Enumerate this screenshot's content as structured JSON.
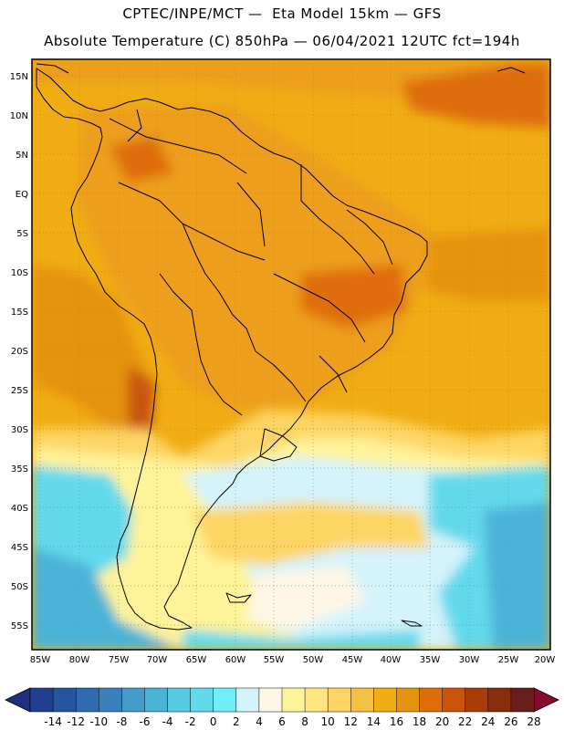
{
  "header": {
    "line1": "CPTEC/INPE/MCT —  Eta Model 15km — GFS",
    "line2": "Absolute Temperature (C) 850hPa — 06/04/2021 12UTC fct=194h"
  },
  "axes": {
    "lat_labels": [
      "15N",
      "10N",
      "5N",
      "EQ",
      "5S",
      "10S",
      "15S",
      "20S",
      "25S",
      "30S",
      "35S",
      "40S",
      "45S",
      "50S",
      "55S"
    ],
    "lon_labels": [
      "85W",
      "80W",
      "75W",
      "70W",
      "65W",
      "60W",
      "55W",
      "50W",
      "45W",
      "40W",
      "35W",
      "30W",
      "25W",
      "20W"
    ]
  },
  "colorbar": {
    "labels": [
      "-14",
      "-12",
      "-10",
      "-8",
      "-6",
      "-4",
      "-2",
      "0",
      "2",
      "4",
      "6",
      "8",
      "10",
      "12",
      "14",
      "16",
      "18",
      "20",
      "22",
      "24",
      "26",
      "28"
    ],
    "colors": [
      "#1f3f8f",
      "#27549e",
      "#2f6aae",
      "#3a80bd",
      "#459ccb",
      "#4cb3d8",
      "#58c9e3",
      "#63d9ec",
      "#70eef7",
      "#d4f3fb",
      "#fff7e6",
      "#fff39a",
      "#ffe680",
      "#fdd565",
      "#f5c142",
      "#f0ad14",
      "#e5940f",
      "#dd6d08",
      "#c9540a",
      "#a93d0a",
      "#862d0c",
      "#6b1d1b"
    ],
    "under_color": "#1d2f7d",
    "over_color": "#860a2e"
  },
  "colors": {
    "ocean_warm": "#f0ad14",
    "land": "#ec9e1d",
    "hot": "#df6d0f",
    "mild": "#fdd565",
    "cool": "#fff39a",
    "pale": "#fff7e6",
    "cold": "#63d9ec",
    "colder": "#4cb3d8"
  }
}
